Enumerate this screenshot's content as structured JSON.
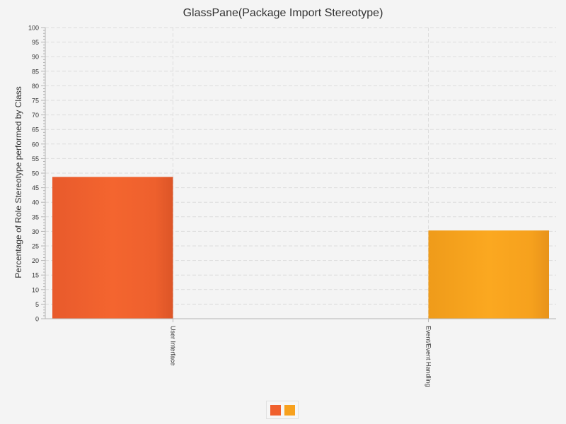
{
  "chart_data": {
    "type": "bar",
    "title": "GlassPane(Package Import Stereotype)",
    "xlabel": "",
    "ylabel": "Percentage of Role Stereotype performed by Class",
    "categories": [
      "User Interface",
      "Event/Event Handling"
    ],
    "series": [
      {
        "color": "#f0602e",
        "values": [
          48.7,
          null
        ]
      },
      {
        "color": "#f7a11e",
        "values": [
          null,
          30.3
        ]
      }
    ],
    "ylim": [
      0,
      100
    ],
    "y_ticks": [
      "0",
      "5",
      "10",
      "15",
      "20",
      "25",
      "30",
      "35",
      "40",
      "45",
      "50",
      "55",
      "60",
      "65",
      "70",
      "75",
      "80",
      "85",
      "90",
      "95",
      "100"
    ],
    "grid": true,
    "legend_position": "bottom"
  }
}
